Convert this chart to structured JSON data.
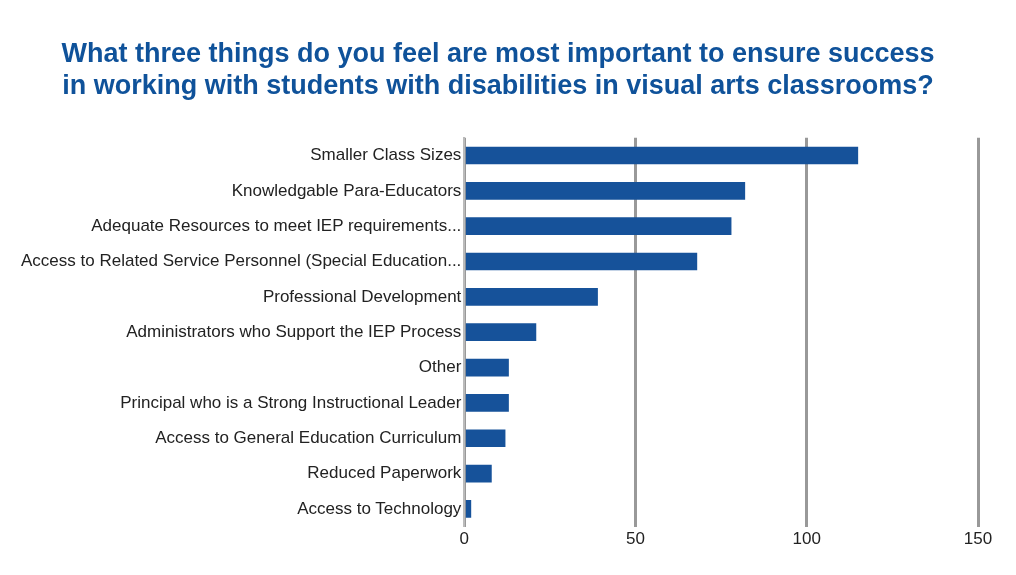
{
  "chart_data": {
    "type": "bar",
    "orientation": "horizontal",
    "title": "What three things do you feel are most important to ensure success\nin working with students with disabilities in visual arts classrooms?",
    "categories": [
      "Smaller Class Sizes",
      "Knowledgable Para-Educators",
      "Adequate Resources to meet IEP requirements...",
      "Access to Related Service Personnel (Special Education...",
      "Professional Development",
      "Administrators who Support the IEP Process",
      "Other",
      "Principal who is a Strong Instructional Leader",
      "Access to General Education Curriculum",
      "Reduced Paperwork",
      "Access to Technology"
    ],
    "values": [
      115,
      82,
      78,
      68,
      39,
      21,
      13,
      13,
      12,
      8,
      2
    ],
    "color": "#16529a",
    "xlim": [
      0,
      150
    ],
    "xticks": [
      0,
      50,
      100,
      150
    ],
    "grid": "x"
  }
}
